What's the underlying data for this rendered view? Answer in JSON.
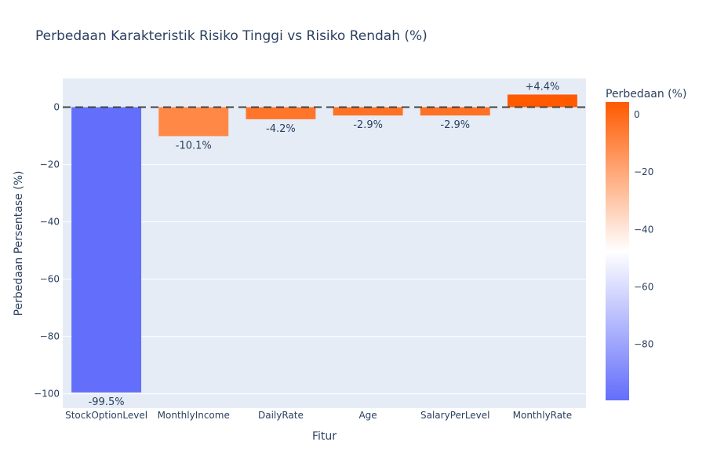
{
  "chart_data": {
    "type": "bar",
    "title": "Perbedaan Karakteristik Risiko Tinggi vs Risiko Rendah (%)",
    "xlabel": "Fitur",
    "ylabel": "Perbedaan Persentase (%)",
    "categories": [
      "StockOptionLevel",
      "MonthlyIncome",
      "DailyRate",
      "Age",
      "SalaryPerLevel",
      "MonthlyRate"
    ],
    "values": [
      -99.5,
      -10.1,
      -4.2,
      -2.9,
      -2.9,
      4.4
    ],
    "data_labels": [
      "-99.5%",
      "-10.1%",
      "-4.2%",
      "-2.9%",
      "-2.9%",
      "+4.4%"
    ],
    "ylim": [
      -105,
      10
    ],
    "yticks": [
      0,
      -20,
      -40,
      -60,
      -80,
      -100
    ],
    "ytick_labels": [
      "0",
      "−20",
      "−40",
      "−60",
      "−80",
      "−100"
    ],
    "reference_line": {
      "y": 0,
      "style": "dashed"
    },
    "grid": true,
    "colorbar": {
      "title": "Perbedaan (%)",
      "range": [
        -99.5,
        4.4
      ],
      "ticks": [
        0,
        -20,
        -40,
        -60,
        -80
      ],
      "tick_labels": [
        "0",
        "−20",
        "−40",
        "−60",
        "−80"
      ],
      "colors": [
        "#636efa",
        "#ffffff",
        "#ff5a00"
      ]
    },
    "plot_bg": "#e5ecf6"
  }
}
